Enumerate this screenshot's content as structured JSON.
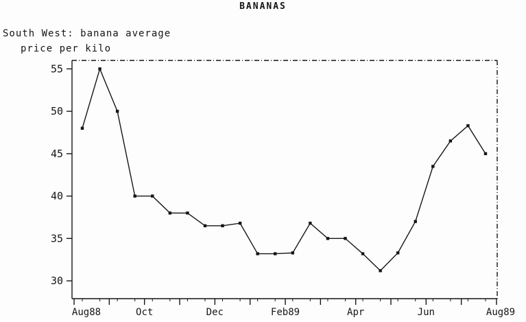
{
  "title": "BANANAS",
  "subtitle_line1": "South West: banana average",
  "subtitle_line2": "price per kilo",
  "chart_data": {
    "type": "line",
    "title": "BANANAS",
    "subtitle": "South West: banana average price per kilo",
    "xlabel": "",
    "ylabel": "price per kilo",
    "ylim": [
      27.9,
      56.0
    ],
    "yticks": [
      30,
      35,
      40,
      45,
      50,
      55
    ],
    "x_tick_labels": [
      "Aug88",
      "Oct",
      "Dec",
      "Feb89",
      "Apr",
      "Jun",
      "Aug89"
    ],
    "x_period": "semi-monthly readings from Aug 1988 to Aug 1989",
    "series": [
      {
        "name": "South West banana average price per kilo",
        "values": [
          48,
          55,
          50,
          40,
          40,
          38,
          38,
          36.5,
          36.5,
          36.8,
          33.2,
          33.2,
          33.3,
          36.8,
          35,
          35,
          33.2,
          31.2,
          33.3,
          37,
          43.5,
          46.5,
          48.3,
          45
        ]
      }
    ],
    "marker": "square",
    "line_color": "#151515",
    "background": "#fdfdfd",
    "grid": false,
    "legend": false,
    "border_style": "solid left/bottom axes, dash-dot top/right frame"
  }
}
